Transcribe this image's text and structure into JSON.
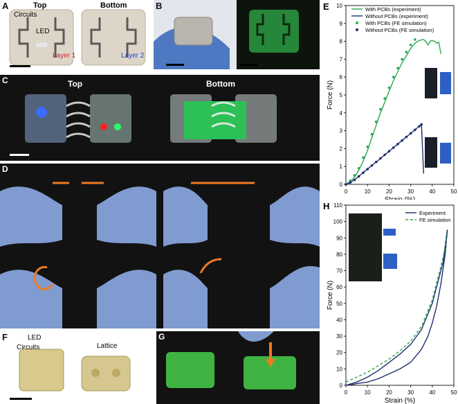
{
  "panels": {
    "A": {
      "label": "A",
      "top": "Top",
      "bottom": "Bottom",
      "circuits": "Circuits",
      "led": "LED",
      "layer1": "Layer 1",
      "layer2": "Layer 2"
    },
    "B": {
      "label": "B"
    },
    "C": {
      "label": "C",
      "top": "Top",
      "bottom": "Bottom"
    },
    "D": {
      "label": "D"
    },
    "E": {
      "label": "E"
    },
    "F": {
      "label": "F",
      "led": "LED",
      "circuits": "Circuits",
      "lattice": "Lattice"
    },
    "G": {
      "label": "G"
    },
    "H": {
      "label": "H"
    }
  },
  "colors": {
    "green": "#2aa84a",
    "navy": "#1d2e6e",
    "red": "#d2202c",
    "blue": "#1c3bd6",
    "orange": "#f07a22"
  },
  "chart_data": [
    {
      "type": "line",
      "panel": "E",
      "xlabel": "Strain (%)",
      "ylabel": "Force (N)",
      "xlim": [
        0,
        50
      ],
      "ylim": [
        0,
        10
      ],
      "xticks": [
        0,
        10,
        20,
        30,
        40,
        50
      ],
      "yticks": [
        0,
        1,
        2,
        3,
        4,
        5,
        6,
        7,
        8,
        9,
        10
      ],
      "legend_position": "top-left",
      "series": [
        {
          "name": "With PCBs (experiment)",
          "style": "line",
          "color": "#2aa84a",
          "x": [
            0,
            2,
            4,
            6,
            8,
            10,
            12,
            14,
            16,
            18,
            20,
            22,
            24,
            26,
            28,
            30,
            32,
            34,
            36,
            37,
            38,
            39,
            40,
            41,
            42,
            43,
            44
          ],
          "y": [
            0,
            0.15,
            0.4,
            0.8,
            1.3,
            1.9,
            2.6,
            3.3,
            4.0,
            4.6,
            5.2,
            5.8,
            6.3,
            6.8,
            7.2,
            7.6,
            7.9,
            8.05,
            8.1,
            8.0,
            7.8,
            8.0,
            8.05,
            8.0,
            7.9,
            7.95,
            7.3
          ]
        },
        {
          "name": "Without PCBs (experiment)",
          "style": "line",
          "color": "#1d2e6e",
          "x": [
            0,
            2,
            4,
            6,
            8,
            10,
            12,
            14,
            16,
            18,
            20,
            22,
            24,
            26,
            28,
            30,
            32,
            34,
            35,
            36
          ],
          "y": [
            0,
            0.1,
            0.25,
            0.45,
            0.65,
            0.85,
            1.05,
            1.25,
            1.45,
            1.65,
            1.85,
            2.05,
            2.25,
            2.45,
            2.65,
            2.85,
            3.05,
            3.25,
            3.35,
            0.6
          ]
        },
        {
          "name": "With PCBs (FE simulation)",
          "style": "markers",
          "color": "#2aa84a",
          "x": [
            0,
            2,
            4,
            6,
            8,
            10,
            12,
            14,
            16,
            18,
            20,
            22,
            24,
            26,
            28,
            30,
            32
          ],
          "y": [
            0,
            0.2,
            0.5,
            0.9,
            1.5,
            2.1,
            2.8,
            3.5,
            4.2,
            4.8,
            5.4,
            6.0,
            6.5,
            7.0,
            7.4,
            7.8,
            8.1
          ]
        },
        {
          "name": "Without PCBs (FE simulation)",
          "style": "markers",
          "color": "#1d2e6e",
          "x": [
            0,
            2,
            4,
            6,
            8,
            10,
            12,
            14,
            16,
            18,
            20,
            22,
            24,
            26,
            28,
            30,
            32,
            34,
            35
          ],
          "y": [
            0,
            0.1,
            0.25,
            0.45,
            0.65,
            0.85,
            1.05,
            1.25,
            1.45,
            1.65,
            1.85,
            2.05,
            2.25,
            2.45,
            2.65,
            2.85,
            3.05,
            3.25,
            3.35
          ]
        }
      ]
    },
    {
      "type": "line",
      "panel": "H",
      "xlabel": "Strain (%)",
      "ylabel": "Force (N)",
      "xlim": [
        0,
        50
      ],
      "ylim": [
        0,
        110
      ],
      "xticks": [
        0,
        10,
        20,
        30,
        40,
        50
      ],
      "yticks": [
        0,
        10,
        20,
        30,
        40,
        50,
        60,
        70,
        80,
        90,
        100,
        110
      ],
      "legend_position": "top-right",
      "series": [
        {
          "name": "Experiment",
          "style": "line",
          "color": "#1d2e6e",
          "x": [
            0,
            5,
            10,
            15,
            20,
            25,
            30,
            35,
            40,
            45,
            46,
            47
          ],
          "y": [
            0,
            2,
            5,
            9,
            14,
            19,
            25,
            34,
            50,
            75,
            85,
            95
          ]
        },
        {
          "name": "",
          "style": "line",
          "color": "#1d2e6e",
          "x": [
            47,
            46,
            44,
            42,
            40,
            38,
            35,
            30,
            25,
            20,
            15,
            10,
            5,
            1
          ],
          "y": [
            95,
            80,
            62,
            48,
            38,
            30,
            22,
            14,
            10,
            7,
            4,
            2,
            1,
            0
          ]
        },
        {
          "name": "FE simulation",
          "style": "dashed",
          "color": "#2aa84a",
          "x": [
            0,
            5,
            10,
            15,
            20,
            25,
            30,
            35,
            40,
            45,
            47
          ],
          "y": [
            2,
            5,
            8,
            12,
            16,
            21,
            27,
            36,
            52,
            78,
            92
          ]
        }
      ]
    }
  ]
}
